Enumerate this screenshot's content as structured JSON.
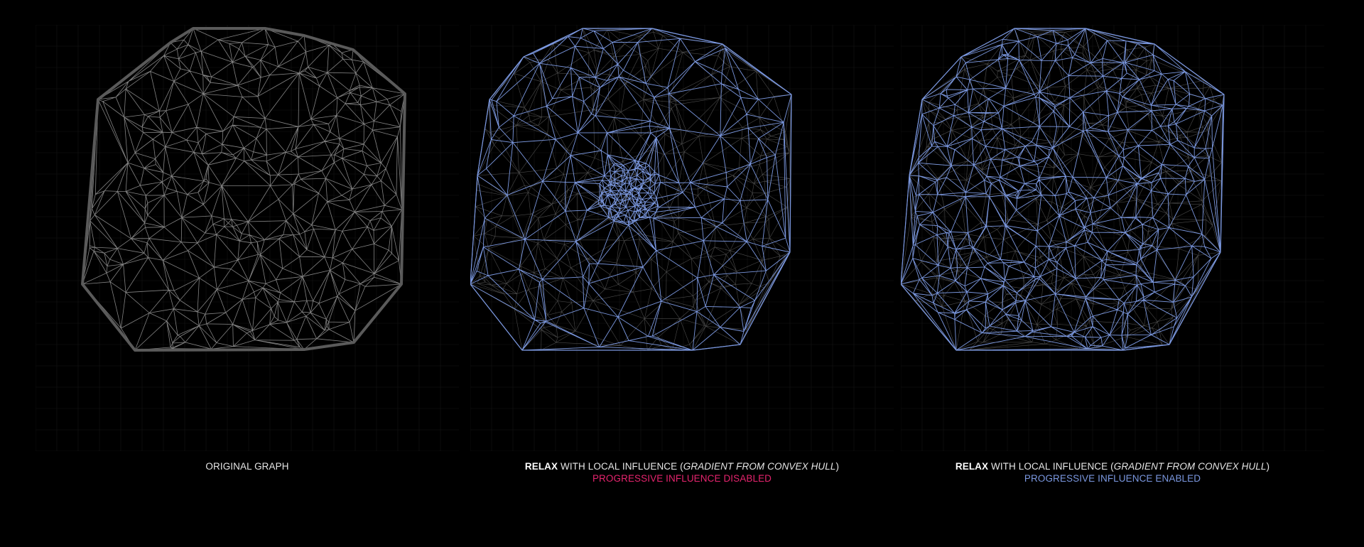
{
  "colors": {
    "background": "#000000",
    "grid": "#141414",
    "original_edge": "#8a8a8a",
    "original_hull": "#5a5a5a",
    "relaxed_edge": "#7b98e0",
    "disabled_accent": "#e6246e",
    "enabled_accent": "#7b98e0"
  },
  "panels": [
    {
      "id": "original",
      "caption": {
        "plain": "ORIGINAL GRAPH"
      }
    },
    {
      "id": "progressive-disabled",
      "caption": {
        "bold": "RELAX",
        "mid": " WITH LOCAL INFLUENCE (",
        "italic": "GRADIENT FROM CONVEX HULL",
        "end": ")",
        "sub": "PROGRESSIVE INFLUENCE DISABLED"
      }
    },
    {
      "id": "progressive-enabled",
      "caption": {
        "bold": "RELAX",
        "mid": " WITH LOCAL INFLUENCE (",
        "italic": "GRADIENT FROM CONVEX HULL",
        "end": ")",
        "sub": "PROGRESSIVE INFLUENCE ENABLED"
      }
    }
  ]
}
